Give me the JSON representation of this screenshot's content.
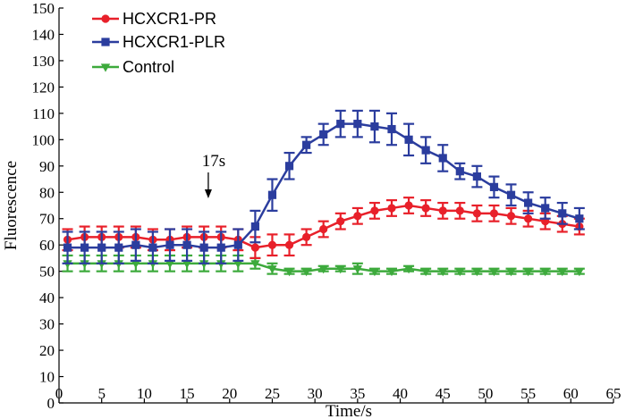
{
  "chart_data": {
    "type": "line",
    "xlabel": "Time/s",
    "ylabel": "Fluorescence",
    "xlim": [
      0,
      65
    ],
    "ylim": [
      0,
      150
    ],
    "xticks": [
      0,
      5,
      10,
      15,
      20,
      25,
      30,
      35,
      40,
      45,
      50,
      55,
      60,
      65
    ],
    "yticks": [
      0,
      10,
      20,
      30,
      40,
      50,
      60,
      70,
      80,
      90,
      100,
      110,
      120,
      130,
      140,
      150
    ],
    "grid": false,
    "legend_position": "top-left",
    "annotation": {
      "text": "17s",
      "x": 17.5,
      "arrow_to_y": 65
    },
    "series": [
      {
        "name": "HCXCR1-PR",
        "color": "#e8202a",
        "marker": "circle",
        "x": [
          1,
          3,
          5,
          7,
          9,
          11,
          13,
          15,
          17,
          19,
          21,
          23,
          25,
          27,
          29,
          31,
          33,
          35,
          37,
          39,
          41,
          43,
          45,
          47,
          49,
          51,
          53,
          55,
          57,
          59,
          61
        ],
        "y": [
          62,
          63,
          63,
          63,
          63,
          62,
          62,
          63,
          63,
          63,
          62,
          59,
          60,
          60,
          63,
          66,
          69,
          71,
          73,
          74,
          75,
          74,
          73,
          73,
          72,
          72,
          71,
          70,
          69,
          68,
          67
        ],
        "err": [
          4,
          4,
          4,
          4,
          4,
          4,
          4,
          4,
          4,
          4,
          4,
          4,
          4,
          4,
          3,
          3,
          3,
          3,
          3,
          3,
          3,
          3,
          3,
          3,
          3,
          3,
          3,
          3,
          3,
          3,
          3
        ]
      },
      {
        "name": "HCXCR1-PLR",
        "color": "#2b3d9e",
        "marker": "square",
        "x": [
          1,
          3,
          5,
          7,
          9,
          11,
          13,
          15,
          17,
          19,
          21,
          23,
          25,
          27,
          29,
          31,
          33,
          35,
          37,
          39,
          41,
          43,
          45,
          47,
          49,
          51,
          53,
          55,
          57,
          59,
          61
        ],
        "y": [
          59,
          59,
          59,
          59,
          60,
          59,
          60,
          60,
          59,
          59,
          60,
          67,
          79,
          90,
          98,
          102,
          106,
          106,
          105,
          104,
          100,
          96,
          93,
          88,
          86,
          82,
          79,
          76,
          74,
          72,
          70
        ],
        "err": [
          6,
          6,
          6,
          6,
          6,
          6,
          6,
          6,
          6,
          6,
          6,
          6,
          6,
          5,
          3,
          4,
          5,
          5,
          6,
          6,
          6,
          5,
          5,
          3,
          4,
          4,
          4,
          4,
          4,
          4,
          4
        ]
      },
      {
        "name": "Control",
        "color": "#3daa3c",
        "marker": "triangle-down",
        "x": [
          1,
          3,
          5,
          7,
          9,
          11,
          13,
          15,
          17,
          19,
          21,
          23,
          25,
          27,
          29,
          31,
          33,
          35,
          37,
          39,
          41,
          43,
          45,
          47,
          49,
          51,
          53,
          55,
          57,
          59,
          61
        ],
        "y": [
          53,
          53,
          53,
          53,
          53,
          53,
          53,
          53,
          53,
          53,
          53,
          53,
          51,
          50,
          50,
          51,
          51,
          51,
          50,
          50,
          51,
          50,
          50,
          50,
          50,
          50,
          50,
          50,
          50,
          50,
          50
        ],
        "err": [
          3,
          3,
          3,
          3,
          3,
          3,
          3,
          3,
          3,
          3,
          3,
          2,
          2,
          1,
          1,
          1,
          1,
          2,
          1,
          1,
          1,
          1,
          1,
          1,
          1,
          1,
          1,
          1,
          1,
          1,
          1
        ]
      }
    ]
  }
}
